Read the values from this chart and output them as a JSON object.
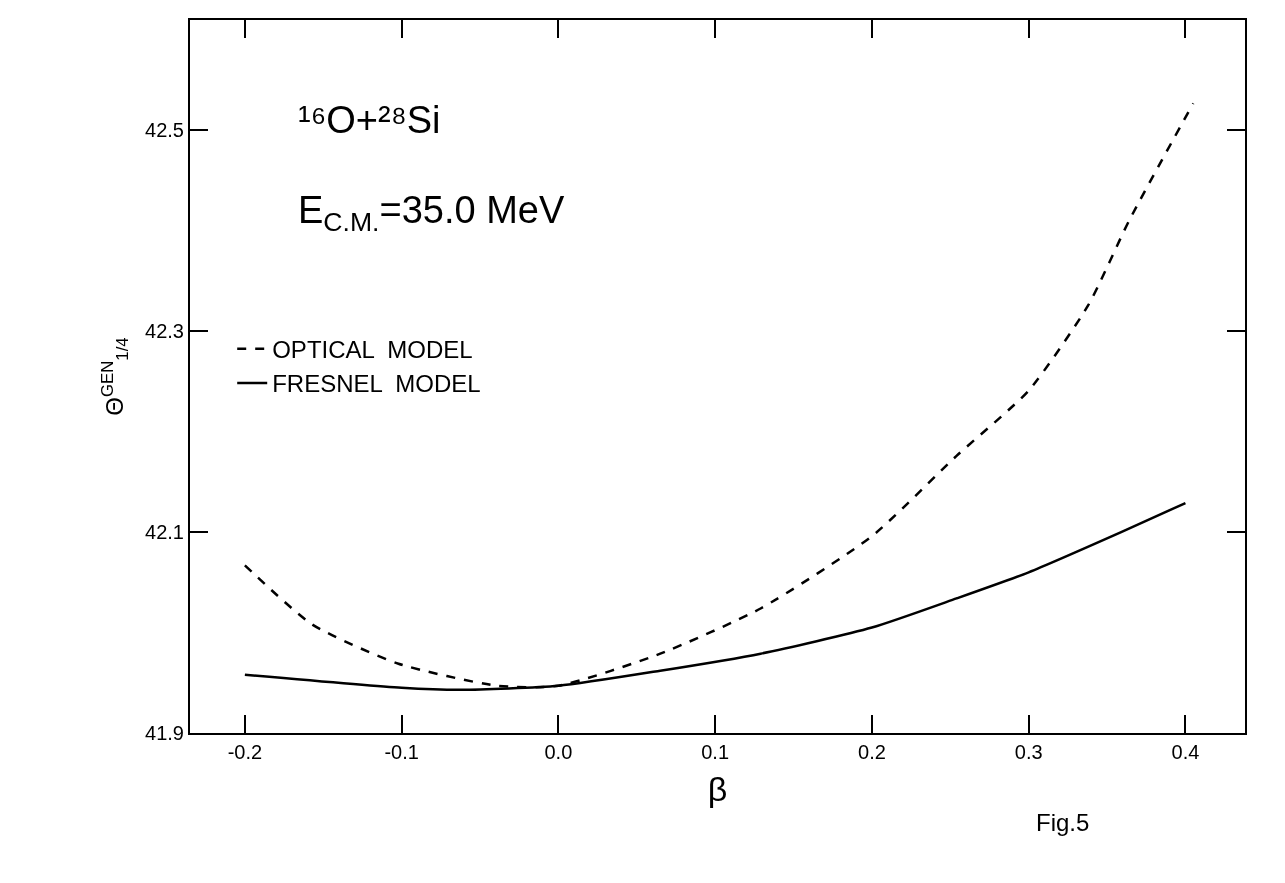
{
  "chart_data": {
    "type": "line",
    "xlabel": "β",
    "ylabel": "Θ$^{GEN}$$_{1/4}$",
    "annotations": [
      "¹⁶O+²⁸Si",
      "E$_{C.M.}$=35.0 MeV",
      "Fig.5"
    ],
    "series": [
      {
        "name": "OPTICAL  MODEL",
        "color": "#000000",
        "line_style": "dashed",
        "x": [
          -0.2,
          -0.157,
          -0.102,
          -0.039,
          0.0,
          0.065,
          0.129,
          0.2,
          0.254,
          0.3,
          0.338,
          0.364,
          0.405
        ],
        "values": [
          42.067,
          42.008,
          41.969,
          41.947,
          41.947,
          41.979,
          42.024,
          42.096,
          42.176,
          42.241,
          42.326,
          42.41,
          42.527
        ]
      },
      {
        "name": "FRESNEL  MODEL",
        "color": "#000000",
        "line_style": "solid",
        "x": [
          -0.2,
          -0.1,
          -0.062,
          0.0,
          0.065,
          0.129,
          0.2,
          0.254,
          0.3,
          0.359,
          0.4
        ],
        "values": [
          41.958,
          41.945,
          41.943,
          41.947,
          41.962,
          41.979,
          42.005,
          42.034,
          42.06,
          42.1,
          42.129
        ]
      }
    ],
    "xlim": [
      -0.235,
      0.438
    ],
    "ylim": [
      41.9,
      42.61
    ],
    "xticks": [
      -0.2,
      -0.1,
      {
        "value": 0,
        "label": "0.0"
      },
      0.1,
      0.2,
      0.3,
      0.4
    ],
    "yticks": [
      41.9,
      42.1,
      42.3,
      42.5
    ],
    "legend": "top left",
    "marker": "none"
  }
}
